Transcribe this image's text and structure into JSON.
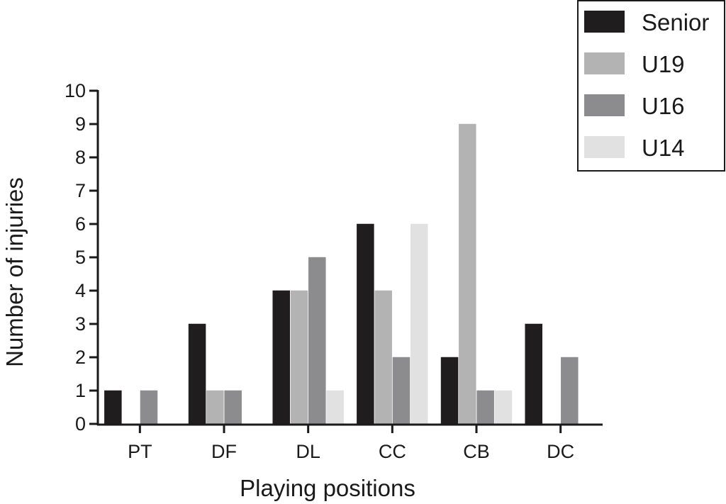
{
  "chart_data": {
    "type": "bar",
    "title": "",
    "xlabel": "Playing positions",
    "ylabel": "Number of injuries",
    "ylim": [
      0,
      10
    ],
    "yticks": [
      0,
      1,
      2,
      3,
      4,
      5,
      6,
      7,
      8,
      9,
      10
    ],
    "categories": [
      "PT",
      "DF",
      "DL",
      "CC",
      "CB",
      "DC"
    ],
    "series": [
      {
        "name": "Senior",
        "color": "#1f1d1e",
        "values": [
          1,
          3,
          4,
          6,
          2,
          3
        ]
      },
      {
        "name": "U19",
        "color": "#b3b3b3",
        "values": [
          0,
          1,
          4,
          4,
          9,
          0
        ]
      },
      {
        "name": "U16",
        "color": "#8c8c8e",
        "values": [
          1,
          1,
          5,
          2,
          1,
          2
        ]
      },
      {
        "name": "U14",
        "color": "#e1e1e1",
        "values": [
          0,
          0,
          1,
          6,
          1,
          0
        ]
      }
    ],
    "grid": false,
    "legend_position": "top-right"
  }
}
